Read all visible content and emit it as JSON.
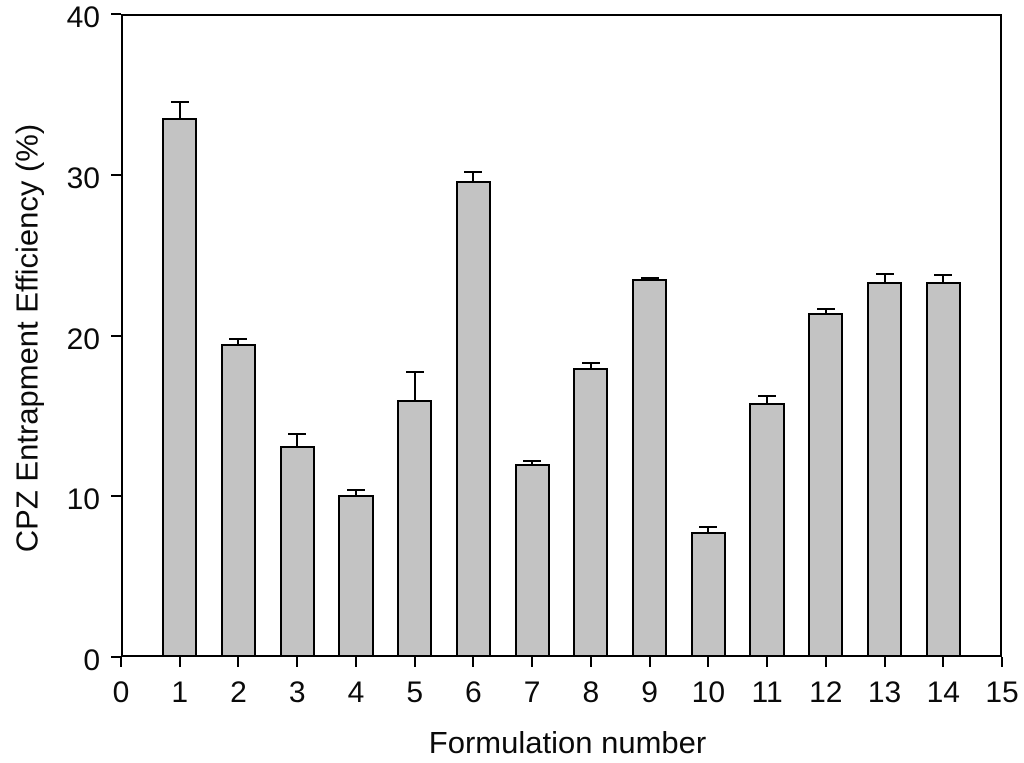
{
  "chart_data": {
    "type": "bar",
    "title": "",
    "xlabel": "Formulation number",
    "ylabel": "CPZ Entrapment Efficiency (%)",
    "categories": [
      1,
      2,
      3,
      4,
      5,
      6,
      7,
      8,
      9,
      10,
      11,
      12,
      13,
      14
    ],
    "values": [
      33.5,
      19.5,
      13.1,
      10.1,
      16.0,
      29.6,
      12.0,
      18.0,
      23.5,
      7.8,
      15.8,
      21.4,
      23.3,
      23.3
    ],
    "errors": [
      1.0,
      0.3,
      0.8,
      0.3,
      1.7,
      0.6,
      0.2,
      0.3,
      0.1,
      0.3,
      0.45,
      0.25,
      0.5,
      0.45
    ],
    "xlim": [
      0,
      15
    ],
    "ylim": [
      0,
      40
    ],
    "xticks": [
      0,
      1,
      2,
      3,
      4,
      5,
      6,
      7,
      8,
      9,
      10,
      11,
      12,
      13,
      14,
      15
    ],
    "yticks": [
      0,
      10,
      20,
      30,
      40
    ],
    "bar_color": "#c3c3c3",
    "bar_border_color": "#000000",
    "axis_color": "#000000",
    "grid": false,
    "legend": null
  }
}
